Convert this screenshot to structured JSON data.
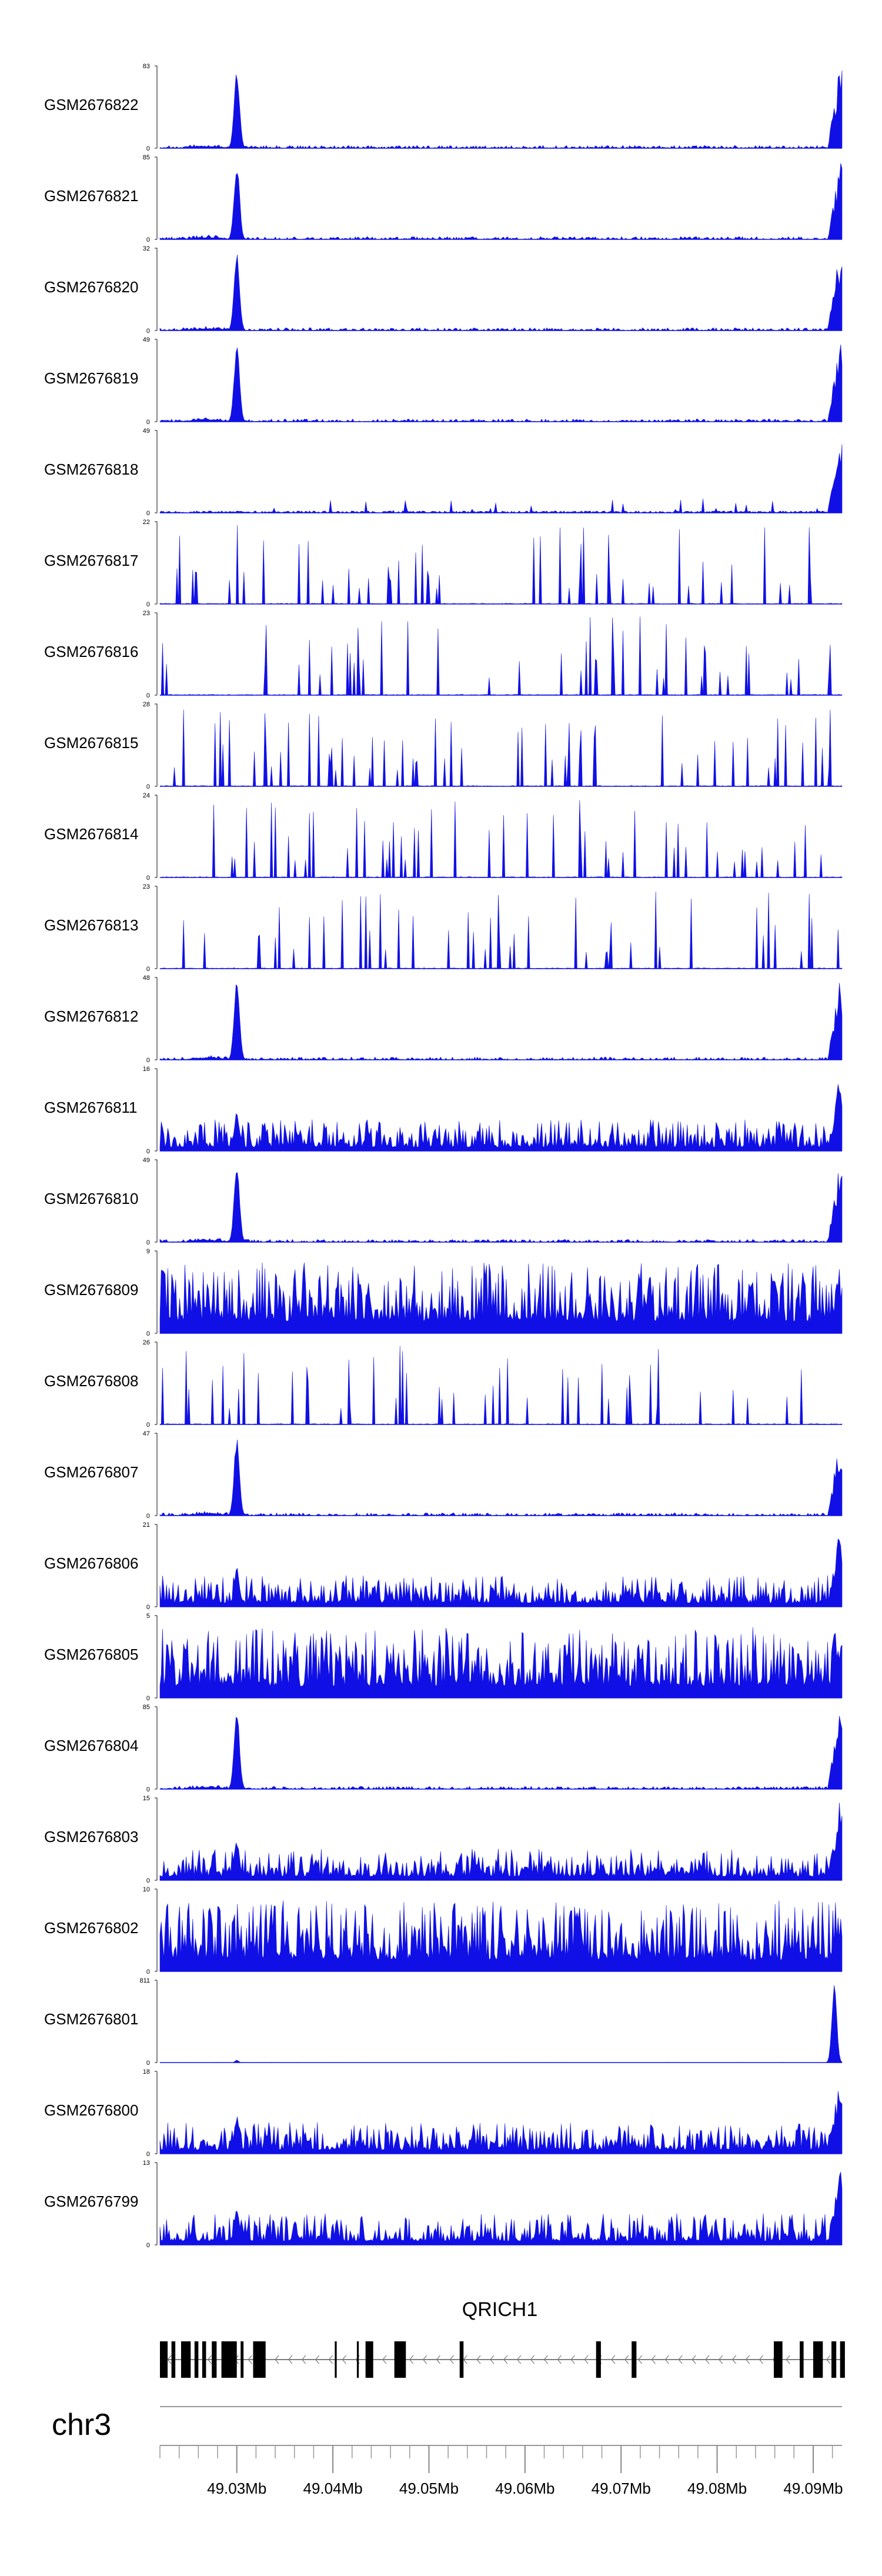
{
  "chart_data": {
    "type": "area",
    "chromosome": "chr3",
    "xlim": [
      49.022,
      49.093
    ],
    "x_unit": "Mb",
    "x_ticks": [
      {
        "value": 49.03,
        "label": "49.03Mb"
      },
      {
        "value": 49.04,
        "label": "49.04Mb"
      },
      {
        "value": 49.05,
        "label": "49.05Mb"
      },
      {
        "value": 49.06,
        "label": "49.06Mb"
      },
      {
        "value": 49.07,
        "label": "49.07Mb"
      },
      {
        "value": 49.08,
        "label": "49.08Mb"
      },
      {
        "value": 49.09,
        "label": "49.09Mb"
      }
    ],
    "gene": {
      "name": "QRICH1",
      "strand": "-",
      "exons": [
        [
          49.022,
          49.0228
        ],
        [
          49.0232,
          49.0236
        ],
        [
          49.0242,
          49.0252
        ],
        [
          49.0256,
          49.026
        ],
        [
          49.0264,
          49.0268
        ],
        [
          49.0274,
          49.0279
        ],
        [
          49.0284,
          49.03
        ],
        [
          49.0304,
          49.0307
        ],
        [
          49.0317,
          49.033
        ],
        [
          49.0402,
          49.0404
        ],
        [
          49.0425,
          49.0427
        ],
        [
          49.0434,
          49.0442
        ],
        [
          49.0464,
          49.0476
        ],
        [
          49.0532,
          49.0536
        ],
        [
          49.0674,
          49.0679
        ],
        [
          49.0711,
          49.0716
        ],
        [
          49.0859,
          49.0868
        ],
        [
          49.0886,
          49.089
        ],
        [
          49.09,
          49.091
        ],
        [
          49.0919,
          49.0924
        ],
        [
          49.0928,
          49.0933
        ]
      ]
    },
    "signal_color": "#1010e6",
    "tracks": [
      {
        "name": "GSM2676822",
        "ymax": 83,
        "profile": "peak"
      },
      {
        "name": "GSM2676821",
        "ymax": 85,
        "profile": "peak"
      },
      {
        "name": "GSM2676820",
        "ymax": 32,
        "profile": "peak"
      },
      {
        "name": "GSM2676819",
        "ymax": 49,
        "profile": "peak"
      },
      {
        "name": "GSM2676818",
        "ymax": 49,
        "profile": "end"
      },
      {
        "name": "GSM2676817",
        "ymax": 22,
        "profile": "sparse"
      },
      {
        "name": "GSM2676816",
        "ymax": 23,
        "profile": "sparse"
      },
      {
        "name": "GSM2676815",
        "ymax": 28,
        "profile": "sparse"
      },
      {
        "name": "GSM2676814",
        "ymax": 24,
        "profile": "sparse"
      },
      {
        "name": "GSM2676813",
        "ymax": 23,
        "profile": "sparse"
      },
      {
        "name": "GSM2676812",
        "ymax": 48,
        "profile": "peak"
      },
      {
        "name": "GSM2676811",
        "ymax": 16,
        "profile": "dense"
      },
      {
        "name": "GSM2676810",
        "ymax": 49,
        "profile": "peak"
      },
      {
        "name": "GSM2676809",
        "ymax": 9,
        "profile": "noisy"
      },
      {
        "name": "GSM2676808",
        "ymax": 26,
        "profile": "sparse"
      },
      {
        "name": "GSM2676807",
        "ymax": 47,
        "profile": "peak"
      },
      {
        "name": "GSM2676806",
        "ymax": 21,
        "profile": "dense"
      },
      {
        "name": "GSM2676805",
        "ymax": 5,
        "profile": "noisy"
      },
      {
        "name": "GSM2676804",
        "ymax": 85,
        "profile": "peak"
      },
      {
        "name": "GSM2676803",
        "ymax": 15,
        "profile": "dense"
      },
      {
        "name": "GSM2676802",
        "ymax": 10,
        "profile": "noisy"
      },
      {
        "name": "GSM2676801",
        "ymax": 811,
        "profile": "spike"
      },
      {
        "name": "GSM2676800",
        "ymax": 18,
        "profile": "dense"
      },
      {
        "name": "GSM2676799",
        "ymax": 13,
        "profile": "dense"
      }
    ]
  }
}
